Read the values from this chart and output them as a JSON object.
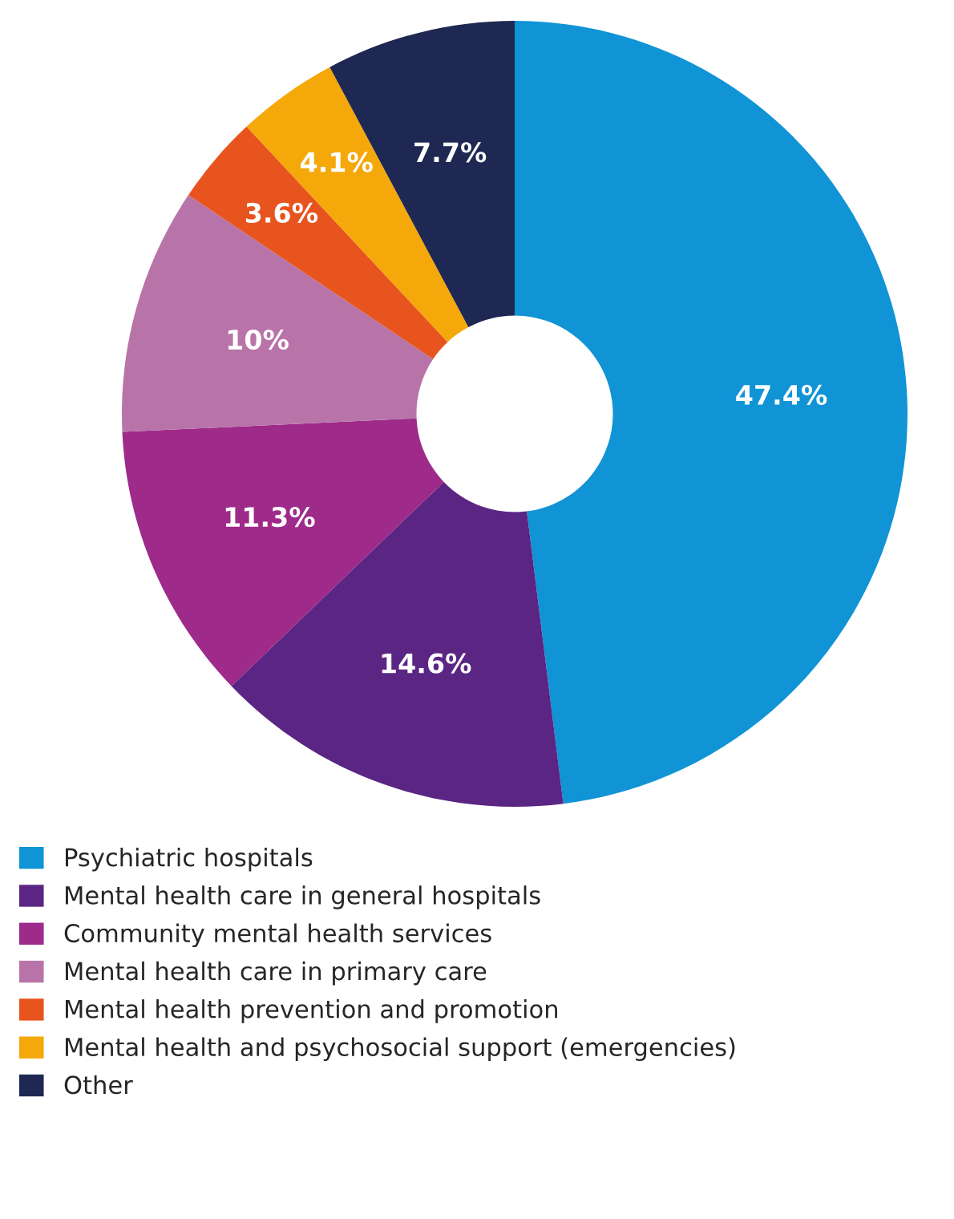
{
  "chart_data": {
    "type": "donut",
    "categories": [
      "Psychiatric hospitals",
      "Mental health care in general hospitals",
      "Community mental health services",
      "Mental health care in primary care",
      "Mental health prevention and promotion",
      "Mental health and psychosocial support (emergencies)",
      "Other"
    ],
    "values": [
      47.4,
      14.6,
      11.3,
      10,
      3.6,
      4.1,
      7.7
    ],
    "value_labels": [
      "47.4%",
      "14.6%",
      "11.3%",
      "10%",
      "3.6%",
      "4.1%",
      "7.7%"
    ],
    "colors": [
      "#1094d6",
      "#5a2583",
      "#9e2a8a",
      "#b874a8",
      "#e8541e",
      "#f5a80a",
      "#1e2852"
    ],
    "legend": "bottom"
  }
}
